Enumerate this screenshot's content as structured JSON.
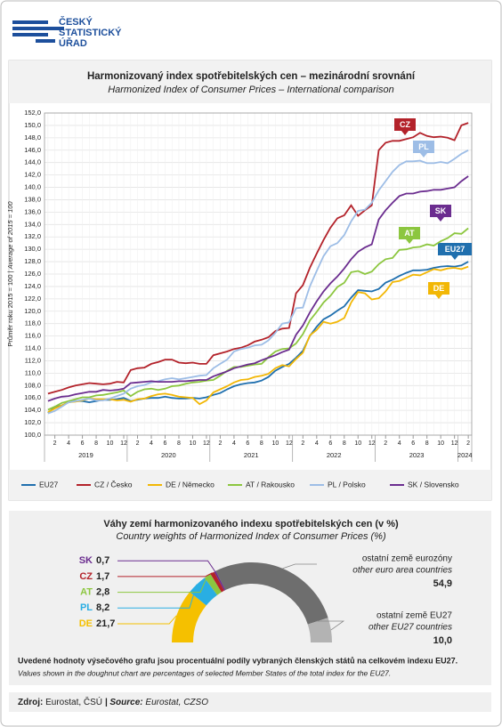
{
  "logo": {
    "lines": [
      "ČESKÝ",
      "STATISTICKÝ",
      "ÚŘAD"
    ]
  },
  "chart_data": [
    {
      "type": "line",
      "title": "Harmonizovaný  index spotřebitelských cen – mezinárodní srovnání",
      "subtitle": "Harmonized Index of Consumer Prices – International comparison",
      "y_label": "Průměr roku 2015 = 100 |",
      "y_label_en": "Average of 2015 = 100",
      "x": [
        "2019-01",
        "2019-02",
        "2019-03",
        "2019-04",
        "2019-05",
        "2019-06",
        "2019-07",
        "2019-08",
        "2019-09",
        "2019-10",
        "2019-11",
        "2019-12",
        "2020-01",
        "2020-02",
        "2020-03",
        "2020-04",
        "2020-05",
        "2020-06",
        "2020-07",
        "2020-08",
        "2020-09",
        "2020-10",
        "2020-11",
        "2020-12",
        "2021-01",
        "2021-02",
        "2021-03",
        "2021-04",
        "2021-05",
        "2021-06",
        "2021-07",
        "2021-08",
        "2021-09",
        "2021-10",
        "2021-11",
        "2021-12",
        "2022-01",
        "2022-02",
        "2022-03",
        "2022-04",
        "2022-05",
        "2022-06",
        "2022-07",
        "2022-08",
        "2022-09",
        "2022-10",
        "2022-11",
        "2022-12",
        "2023-01",
        "2023-02",
        "2023-03",
        "2023-04",
        "2023-05",
        "2023-06",
        "2023-07",
        "2023-08",
        "2023-09",
        "2023-10",
        "2023-11",
        "2023-12",
        "2024-01",
        "2024-02"
      ],
      "xticks": [
        {
          "value": "2019-02",
          "label": "2"
        },
        {
          "value": "2019-04",
          "label": "4"
        },
        {
          "value": "2019-06",
          "label": "6"
        },
        {
          "value": "2019-08",
          "label": "8"
        },
        {
          "value": "2019-10",
          "label": "10"
        },
        {
          "value": "2019-12",
          "label": "12"
        },
        {
          "value": "2020-02",
          "label": "2"
        },
        {
          "value": "2020-04",
          "label": "4"
        },
        {
          "value": "2020-06",
          "label": "6"
        },
        {
          "value": "2020-08",
          "label": "8"
        },
        {
          "value": "2020-10",
          "label": "10"
        },
        {
          "value": "2020-12",
          "label": "12"
        },
        {
          "value": "2021-02",
          "label": "2"
        },
        {
          "value": "2021-04",
          "label": "4"
        },
        {
          "value": "2021-06",
          "label": "6"
        },
        {
          "value": "2021-08",
          "label": "8"
        },
        {
          "value": "2021-10",
          "label": "10"
        },
        {
          "value": "2021-12",
          "label": "12"
        },
        {
          "value": "2022-02",
          "label": "2"
        },
        {
          "value": "2022-04",
          "label": "4"
        },
        {
          "value": "2022-06",
          "label": "6"
        },
        {
          "value": "2022-08",
          "label": "8"
        },
        {
          "value": "2022-10",
          "label": "10"
        },
        {
          "value": "2022-12",
          "label": "12"
        },
        {
          "value": "2023-02",
          "label": "2"
        },
        {
          "value": "2023-04",
          "label": "4"
        },
        {
          "value": "2023-06",
          "label": "6"
        },
        {
          "value": "2023-08",
          "label": "8"
        },
        {
          "value": "2023-10",
          "label": "10"
        },
        {
          "value": "2023-12",
          "label": "12"
        },
        {
          "value": "2024-02",
          "label": "2"
        }
      ],
      "years": [
        "2019",
        "2020",
        "2021",
        "2022",
        "2023",
        "2024"
      ],
      "ylim": [
        100,
        152
      ],
      "yticks": [
        {
          "value": 100,
          "label": "100,0"
        },
        {
          "value": 102,
          "label": "102,0"
        },
        {
          "value": 104,
          "label": "104,0"
        },
        {
          "value": 106,
          "label": "106,0"
        },
        {
          "value": 108,
          "label": "108,0"
        },
        {
          "value": 110,
          "label": "110,0"
        },
        {
          "value": 112,
          "label": "112,0"
        },
        {
          "value": 114,
          "label": "114,0"
        },
        {
          "value": 116,
          "label": "116,0"
        },
        {
          "value": 118,
          "label": "118,0"
        },
        {
          "value": 120,
          "label": "120,0"
        },
        {
          "value": 122,
          "label": "122,0"
        },
        {
          "value": 124,
          "label": "124,0"
        },
        {
          "value": 126,
          "label": "126,0"
        },
        {
          "value": 128,
          "label": "128,0"
        },
        {
          "value": 130,
          "label": "130,0"
        },
        {
          "value": 132,
          "label": "132,0"
        },
        {
          "value": 134,
          "label": "134,0"
        },
        {
          "value": 136,
          "label": "136,0"
        },
        {
          "value": 138,
          "label": "138,0"
        },
        {
          "value": 140,
          "label": "140,0"
        },
        {
          "value": 142,
          "label": "142,0"
        },
        {
          "value": 144,
          "label": "144,0"
        },
        {
          "value": 146,
          "label": "146,0"
        },
        {
          "value": 148,
          "label": "148,0"
        },
        {
          "value": 150,
          "label": "150,0"
        },
        {
          "value": 152,
          "label": "152,0"
        }
      ],
      "grid": true,
      "legend": "bottom",
      "series": [
        {
          "name": "EU27",
          "tag": "EU27",
          "color": "#1f6fae",
          "values": [
            103.6,
            104.5,
            104.8,
            105.3,
            105.5,
            105.5,
            105.3,
            105.5,
            105.7,
            105.7,
            105.8,
            106.0,
            105.5,
            105.7,
            105.9,
            106.0,
            106.0,
            106.2,
            106.0,
            105.9,
            105.9,
            106.0,
            105.9,
            106.1,
            106.5,
            106.8,
            107.4,
            107.9,
            108.2,
            108.4,
            108.5,
            108.8,
            109.4,
            110.4,
            111.0,
            111.5,
            112.5,
            113.6,
            116.0,
            117.5,
            118.7,
            119.3,
            120.1,
            120.8,
            122.2,
            123.4,
            123.3,
            123.2,
            123.6,
            124.6,
            125.1,
            125.7,
            126.2,
            126.6,
            126.6,
            126.7,
            127.0,
            127.2,
            127.3,
            127.2,
            127.4,
            128.0
          ]
        },
        {
          "name": "CZ / Česko",
          "tag": "CZ",
          "color": "#b3222a",
          "values": [
            106.7,
            107.0,
            107.3,
            107.7,
            108.0,
            108.2,
            108.4,
            108.3,
            108.2,
            108.3,
            108.6,
            108.5,
            110.5,
            110.8,
            110.9,
            111.5,
            111.8,
            112.2,
            112.2,
            111.7,
            111.6,
            111.7,
            111.5,
            111.5,
            112.9,
            113.2,
            113.5,
            113.9,
            114.1,
            114.5,
            115.1,
            115.4,
            115.8,
            116.8,
            117.2,
            117.3,
            122.9,
            124.2,
            127.0,
            129.3,
            131.5,
            133.5,
            135.0,
            135.5,
            137.1,
            135.4,
            136.3,
            137.1,
            146.0,
            147.2,
            147.5,
            147.5,
            147.8,
            148.1,
            148.8,
            148.3,
            148.1,
            148.2,
            148.0,
            147.6,
            150.0,
            150.4
          ]
        },
        {
          "name": "DE / Německo",
          "tag": "DE",
          "color": "#f2b705",
          "values": [
            103.7,
            104.3,
            104.8,
            105.3,
            105.4,
            105.6,
            105.9,
            105.8,
            105.8,
            105.8,
            105.6,
            105.7,
            105.4,
            105.8,
            105.9,
            106.3,
            106.6,
            106.7,
            106.5,
            106.2,
            106.1,
            106.0,
            105.0,
            105.6,
            106.9,
            107.4,
            107.9,
            108.5,
            108.9,
            109.0,
            109.4,
            109.6,
            109.9,
            110.8,
            111.3,
            111.1,
            112.3,
            113.3,
            116.1,
            117.0,
            118.3,
            118.0,
            118.3,
            118.9,
            121.4,
            123.1,
            122.9,
            121.9,
            122.1,
            123.2,
            124.7,
            124.9,
            125.4,
            125.9,
            125.8,
            126.3,
            126.8,
            126.6,
            126.9,
            127.0,
            126.8,
            127.2
          ]
        },
        {
          "name": "AT / Rakousko",
          "tag": "AT",
          "color": "#8cc63f",
          "values": [
            104.1,
            104.6,
            105.2,
            105.5,
            105.8,
            106.1,
            106.1,
            106.4,
            106.5,
            106.7,
            106.9,
            107.2,
            106.3,
            107.0,
            107.4,
            107.5,
            107.3,
            107.5,
            107.9,
            108.0,
            108.3,
            108.5,
            108.6,
            108.8,
            108.9,
            109.6,
            110.4,
            111.0,
            111.0,
            111.2,
            111.4,
            111.5,
            112.6,
            113.5,
            113.9,
            114.0,
            114.8,
            116.3,
            118.5,
            119.9,
            121.4,
            122.5,
            123.9,
            124.6,
            126.3,
            126.5,
            126.0,
            126.4,
            127.6,
            128.4,
            128.6,
            129.9,
            130.0,
            130.3,
            130.4,
            130.8,
            130.6,
            131.3,
            131.8,
            132.6,
            132.5,
            133.4
          ]
        },
        {
          "name": "PL / Polsko",
          "tag": "PL",
          "color": "#9dbde6",
          "values": [
            103.5,
            103.9,
            104.6,
            105.3,
            105.5,
            105.7,
            105.9,
            105.6,
            105.6,
            105.9,
            106.3,
            106.7,
            107.5,
            107.9,
            108.1,
            108.5,
            108.7,
            109.0,
            109.2,
            109.0,
            109.2,
            109.4,
            109.6,
            109.7,
            110.8,
            111.5,
            112.2,
            113.5,
            113.9,
            114.1,
            114.5,
            114.6,
            115.3,
            116.5,
            118.0,
            118.2,
            120.5,
            120.6,
            124.0,
            126.5,
            128.9,
            130.5,
            131.0,
            132.3,
            134.5,
            136.2,
            136.4,
            137.5,
            139.5,
            141.0,
            142.5,
            143.6,
            144.2,
            144.2,
            144.3,
            143.9,
            143.9,
            144.1,
            143.9,
            144.6,
            145.4,
            146.0
          ]
        },
        {
          "name": "SK / Slovensko",
          "tag": "SK",
          "color": "#6b2d8f",
          "values": [
            105.5,
            105.9,
            106.2,
            106.3,
            106.6,
            106.8,
            107.0,
            107.0,
            107.3,
            107.2,
            107.3,
            107.5,
            108.4,
            108.5,
            108.6,
            108.7,
            108.6,
            108.6,
            108.6,
            108.7,
            108.7,
            108.8,
            108.9,
            108.9,
            109.5,
            109.9,
            110.3,
            110.8,
            111.1,
            111.4,
            111.6,
            112.1,
            112.5,
            112.9,
            113.4,
            113.8,
            116.2,
            117.7,
            119.8,
            121.6,
            123.2,
            124.5,
            125.6,
            126.9,
            128.4,
            129.6,
            130.3,
            130.8,
            134.8,
            136.3,
            137.5,
            138.6,
            139.0,
            139.0,
            139.3,
            139.4,
            139.6,
            139.6,
            139.8,
            140.0,
            141.0,
            141.8
          ]
        }
      ]
    },
    {
      "type": "doughnut",
      "title": "Váhy zemí harmonizovaného indexu spotřebitelských cen (v %)",
      "subtitle": "Country weights of Harmonized Index of Consumer Prices (%)",
      "categories": [
        "DE",
        "PL",
        "AT",
        "CZ",
        "SK",
        "ostatní země eurozóny",
        "ostatní země EU27"
      ],
      "subcategories": [
        null,
        null,
        null,
        null,
        null,
        "other euro area countries",
        "other EU27 countries"
      ],
      "values": [
        21.7,
        8.2,
        2.8,
        1.7,
        0.7,
        54.9,
        10.0
      ],
      "value_labels": [
        "21,7",
        "8,2",
        "2,8",
        "1,7",
        "0,7",
        "54,9",
        "10,0"
      ],
      "colors": [
        "#f5c000",
        "#29aee3",
        "#8cc63f",
        "#b3222a",
        "#6b2d8f",
        "#6e6e6e",
        "#b3b3b3"
      ],
      "note": "Uvedené hodnoty výsečového grafu jsou procentuální podíly vybraných členských států na celkovém indexu EU27.",
      "note_en": "Values shown in the doughnut chart are percentages of selected Member States of the total index for the EU27."
    }
  ],
  "footer": {
    "label": "Zdroj:",
    "text": "Eurostat, ČSÚ",
    "label_en": "| Source:",
    "text_en": "Eurostat, CZSO"
  }
}
